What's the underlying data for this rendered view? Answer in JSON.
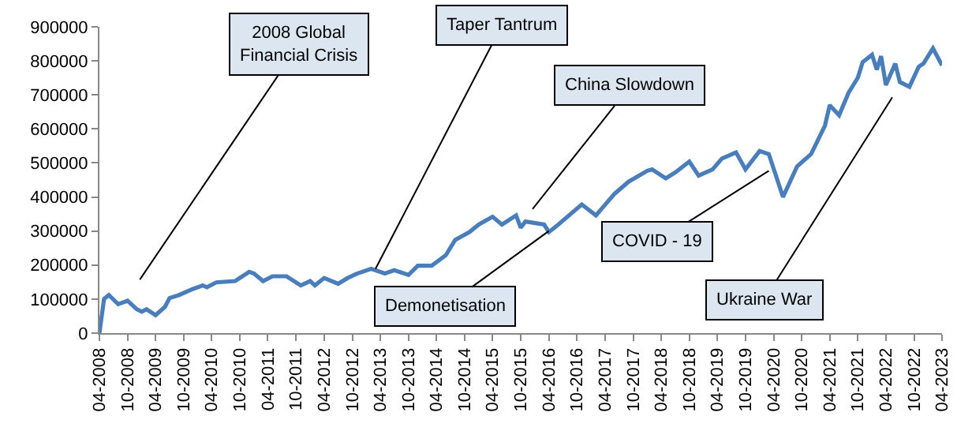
{
  "chart_data": {
    "type": "line",
    "marker": "none",
    "line_style": "solid",
    "xlim": [
      "2008-04",
      "2023-04"
    ],
    "xticks": [
      {
        "value": "2008-04",
        "label": "04-2008"
      },
      {
        "value": "2008-10",
        "label": "10-2008"
      },
      {
        "value": "2009-04",
        "label": "04-2009"
      },
      {
        "value": "2009-10",
        "label": "10-2009"
      },
      {
        "value": "2010-04",
        "label": "04-2010"
      },
      {
        "value": "2010-10",
        "label": "10-2010"
      },
      {
        "value": "2011-04",
        "label": "04-2011"
      },
      {
        "value": "2011-10",
        "label": "10-2011"
      },
      {
        "value": "2012-04",
        "label": "04-2012"
      },
      {
        "value": "2012-10",
        "label": "10-2012"
      },
      {
        "value": "2013-04",
        "label": "04-2013"
      },
      {
        "value": "2013-10",
        "label": "10-2013"
      },
      {
        "value": "2014-04",
        "label": "04-2014"
      },
      {
        "value": "2014-10",
        "label": "10-2014"
      },
      {
        "value": "2015-04",
        "label": "04-2015"
      },
      {
        "value": "2015-10",
        "label": "10-2015"
      },
      {
        "value": "2016-04",
        "label": "04-2016"
      },
      {
        "value": "2016-10",
        "label": "10-2016"
      },
      {
        "value": "2017-04",
        "label": "04-2017"
      },
      {
        "value": "2017-10",
        "label": "10-2017"
      },
      {
        "value": "2018-04",
        "label": "04-2018"
      },
      {
        "value": "2018-10",
        "label": "10-2018"
      },
      {
        "value": "2019-04",
        "label": "04-2019"
      },
      {
        "value": "2019-10",
        "label": "10-2019"
      },
      {
        "value": "2020-04",
        "label": "04-2020"
      },
      {
        "value": "2020-10",
        "label": "10-2020"
      },
      {
        "value": "2021-04",
        "label": "04-2021"
      },
      {
        "value": "2021-10",
        "label": "10-2021"
      },
      {
        "value": "2022-04",
        "label": "04-2022"
      },
      {
        "value": "2022-10",
        "label": "10-2022"
      },
      {
        "value": "2023-04",
        "label": "04-2023"
      }
    ],
    "ylim": [
      0,
      900000
    ],
    "yticks": [
      0,
      100000,
      200000,
      300000,
      400000,
      500000,
      600000,
      700000,
      800000,
      900000
    ],
    "x": [
      "2008-04",
      "2008-05",
      "2008-06",
      "2008-08",
      "2008-10",
      "2008-12",
      "2009-01",
      "2009-02",
      "2009-04",
      "2009-06",
      "2009-07",
      "2009-09",
      "2009-12",
      "2010-02",
      "2010-03",
      "2010-05",
      "2010-09",
      "2010-12",
      "2011-01",
      "2011-03",
      "2011-05",
      "2011-08",
      "2011-11",
      "2012-01",
      "2012-02",
      "2012-04",
      "2012-07",
      "2012-09",
      "2012-11",
      "2013-02",
      "2013-05",
      "2013-07",
      "2013-10",
      "2013-12",
      "2014-03",
      "2014-06",
      "2014-08",
      "2014-11",
      "2015-01",
      "2015-04",
      "2015-06",
      "2015-09",
      "2015-10",
      "2015-11",
      "2016-03",
      "2016-04",
      "2016-06",
      "2016-11",
      "2017-02",
      "2017-06",
      "2017-09",
      "2018-01",
      "2018-02",
      "2018-05",
      "2018-07",
      "2018-10",
      "2018-12",
      "2019-03",
      "2019-05",
      "2019-08",
      "2019-10",
      "2020-01",
      "2020-03",
      "2020-06",
      "2020-09",
      "2020-12",
      "2021-03",
      "2021-04",
      "2021-06",
      "2021-08",
      "2021-10",
      "2021-11",
      "2022-01",
      "2022-02",
      "2022-03",
      "2022-04",
      "2022-06",
      "2022-07",
      "2022-09",
      "2022-11",
      "2022-12",
      "2023-02",
      "2023-04"
    ],
    "series": [
      {
        "color": "#4a7ebb",
        "values": [
          0,
          100000,
          112000,
          85000,
          95000,
          70000,
          63000,
          70000,
          53000,
          77000,
          103000,
          112000,
          130000,
          140000,
          135000,
          149000,
          153000,
          180000,
          175000,
          153000,
          167000,
          167000,
          140000,
          153000,
          140000,
          162000,
          145000,
          162000,
          175000,
          189000,
          175000,
          185000,
          171000,
          198000,
          198000,
          229000,
          274000,
          297000,
          319000,
          342000,
          319000,
          346000,
          310000,
          328000,
          319000,
          297000,
          319000,
          378000,
          346000,
          409000,
          445000,
          477000,
          481000,
          455000,
          472000,
          504000,
          463000,
          481000,
          513000,
          531000,
          481000,
          535000,
          526000,
          400000,
          490000,
          526000,
          610000,
          670000,
          640000,
          706000,
          751000,
          796000,
          818000,
          774000,
          814000,
          729000,
          792000,
          738000,
          724000,
          783000,
          792000,
          837000,
          787000
        ]
      }
    ],
    "annotations": [
      "2008 Global\nFinancial Crisis",
      {
        "text": "Taper Tantrum",
        "x": "2013-03",
        "y": 189000
      },
      "China Slowdown",
      {
        "text": "Demonetisation",
        "x": "2016-04",
        "y": 300000
      },
      {
        "text": "COVID - 19",
        "x": "2020-03",
        "y": 477000
      },
      "Ukraine War"
    ]
  }
}
